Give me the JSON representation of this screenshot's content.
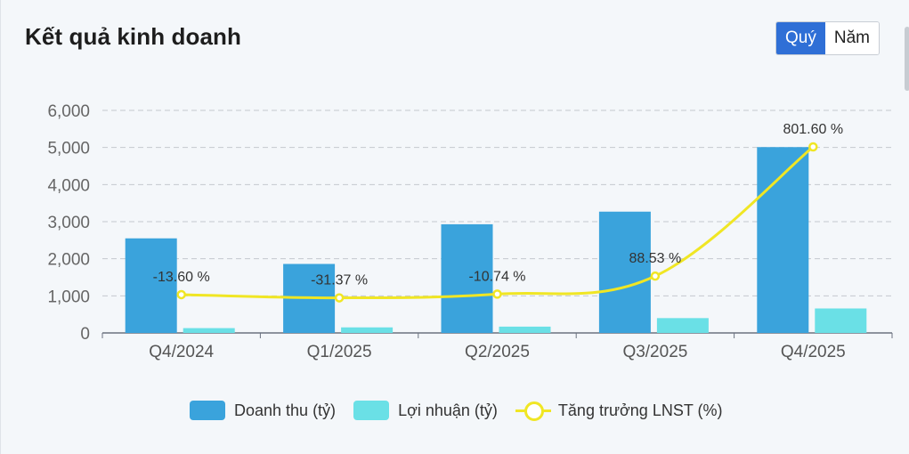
{
  "header": {
    "title": "Kết quả kinh doanh",
    "period_buttons": [
      {
        "label": "Quý",
        "active": true
      },
      {
        "label": "Năm",
        "active": false
      }
    ]
  },
  "colors": {
    "revenue": "#3aa3dc",
    "profit": "#6ae0e6",
    "growth": "#f0e624",
    "active_button": "#2f6fd6"
  },
  "chart_data": {
    "type": "bar",
    "categories": [
      "Q4/2024",
      "Q1/2025",
      "Q2/2025",
      "Q3/2025",
      "Q4/2025"
    ],
    "series": [
      {
        "name": "Doanh thu (tỷ)",
        "type": "bar",
        "axis": "left",
        "values": [
          2550,
          1860,
          2930,
          3270,
          5010
        ]
      },
      {
        "name": "Lợi nhuận (tỷ)",
        "type": "bar",
        "axis": "left",
        "values": [
          130,
          150,
          170,
          400,
          660
        ]
      },
      {
        "name": "Tăng trưởng LNST (%)",
        "type": "line",
        "axis": "right",
        "values": [
          -13.6,
          -31.37,
          -10.74,
          88.53,
          801.6
        ],
        "labels": [
          "-13.60 %",
          "-31.37 %",
          "-10.74 %",
          "88.53 %",
          "801.60 %"
        ]
      }
    ],
    "y_ticks": [
      "0",
      "1,000",
      "2,000",
      "3,000",
      "4,000",
      "5,000",
      "6,000"
    ],
    "ylim": [
      0,
      6000
    ],
    "y2lim": [
      -225,
      801.6
    ],
    "grid": true,
    "legend_position": "bottom"
  }
}
